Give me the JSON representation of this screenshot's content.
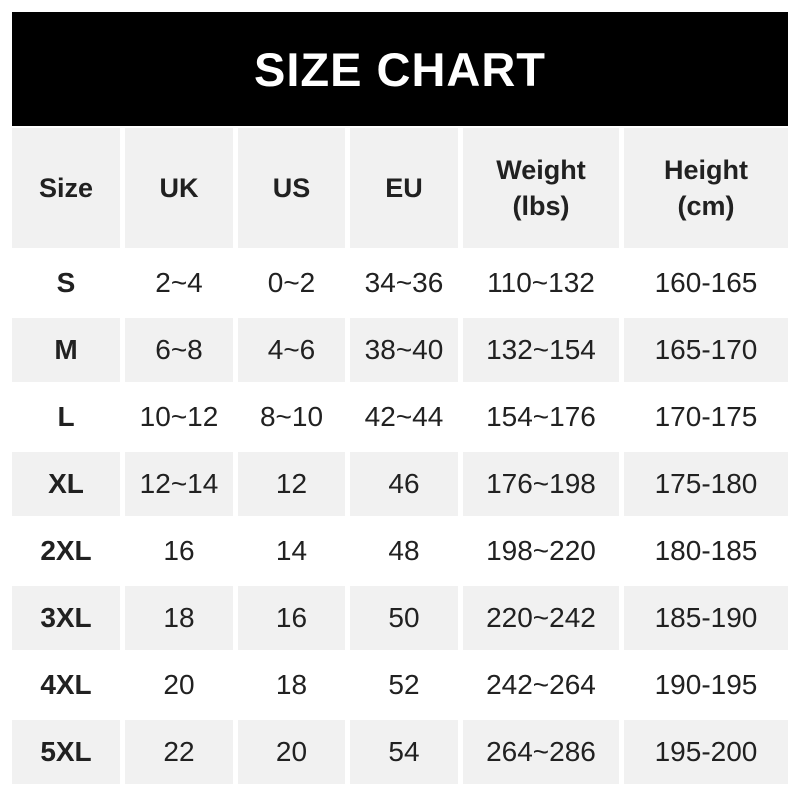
{
  "banner": {
    "title": "SIZE CHART"
  },
  "colors": {
    "page_bg": "#ffffff",
    "banner_bg": "#000000",
    "banner_fg": "#ffffff",
    "row_bg": "#ffffff",
    "row_alt_bg": "#f1f1f1",
    "text": "#212121"
  },
  "header": {
    "size": "Size",
    "uk": "UK",
    "us": "US",
    "eu": "EU",
    "weight_line1": "Weight",
    "weight_line2": "(lbs)",
    "height_line1": "Height",
    "height_line2": "(cm)"
  },
  "chart_data": {
    "type": "table",
    "title": "SIZE CHART",
    "columns": [
      "Size",
      "UK",
      "US",
      "EU",
      "Weight (lbs)",
      "Height (cm)"
    ],
    "rows": [
      [
        "S",
        "2~4",
        "0~2",
        "34~36",
        "110~132",
        "160-165"
      ],
      [
        "M",
        "6~8",
        "4~6",
        "38~40",
        "132~154",
        "165-170"
      ],
      [
        "L",
        "10~12",
        "8~10",
        "42~44",
        "154~176",
        "170-175"
      ],
      [
        "XL",
        "12~14",
        "12",
        "46",
        "176~198",
        "175-180"
      ],
      [
        "2XL",
        "16",
        "14",
        "48",
        "198~220",
        "180-185"
      ],
      [
        "3XL",
        "18",
        "16",
        "50",
        "220~242",
        "185-190"
      ],
      [
        "4XL",
        "20",
        "18",
        "52",
        "242~264",
        "190-195"
      ],
      [
        "5XL",
        "22",
        "20",
        "54",
        "264~286",
        "195-200"
      ]
    ],
    "layout": {
      "alternating_row_shading": true,
      "shaded_rows": [
        "header",
        "M",
        "XL",
        "3XL",
        "5XL"
      ],
      "range_separator_sizes": "~",
      "range_separator_height": "-"
    }
  }
}
